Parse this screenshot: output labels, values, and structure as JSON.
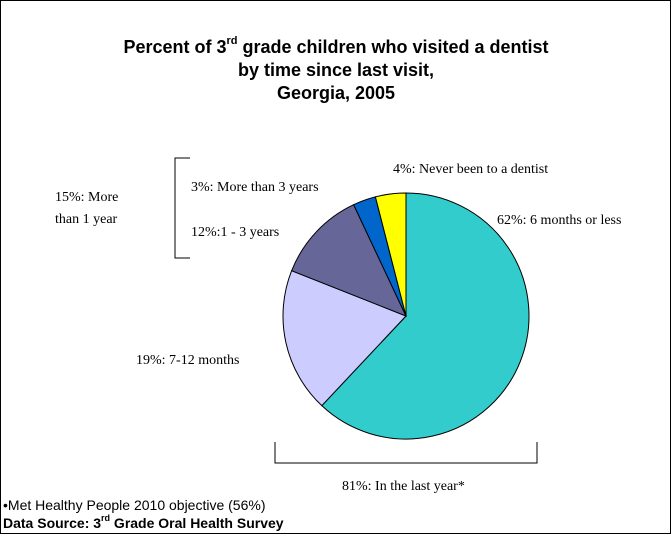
{
  "title": {
    "line1_a": "Percent of 3",
    "line1_sup": "rd",
    "line1_b": " grade children who visited a dentist",
    "line2": "by time since last visit,",
    "line3": "Georgia, 2005"
  },
  "chart_data": {
    "type": "pie",
    "slices": [
      {
        "label": "62%: 6 months or less",
        "value": 62,
        "color": "#33CCCC"
      },
      {
        "label": "19%: 7-12 months",
        "value": 19,
        "color": "#CCCCFF"
      },
      {
        "label": "12%:1 - 3 years",
        "value": 12,
        "color": "#666699"
      },
      {
        "label": "3%: More than 3 years",
        "value": 3,
        "color": "#0066CC"
      },
      {
        "label": "4%: Never been to a dentist",
        "value": 4,
        "color": "#FFFF00"
      }
    ],
    "group_labels": {
      "more_than_1_year_line1": "15%: More",
      "more_than_1_year_line2": "than 1 year",
      "last_year": "81%: In the last year*"
    }
  },
  "footnote": {
    "objective": "•Met Healthy People 2010 objective (56%)",
    "source_a": "Data Source: 3",
    "source_sup": "rd",
    "source_b": " Grade Oral Health Survey"
  }
}
